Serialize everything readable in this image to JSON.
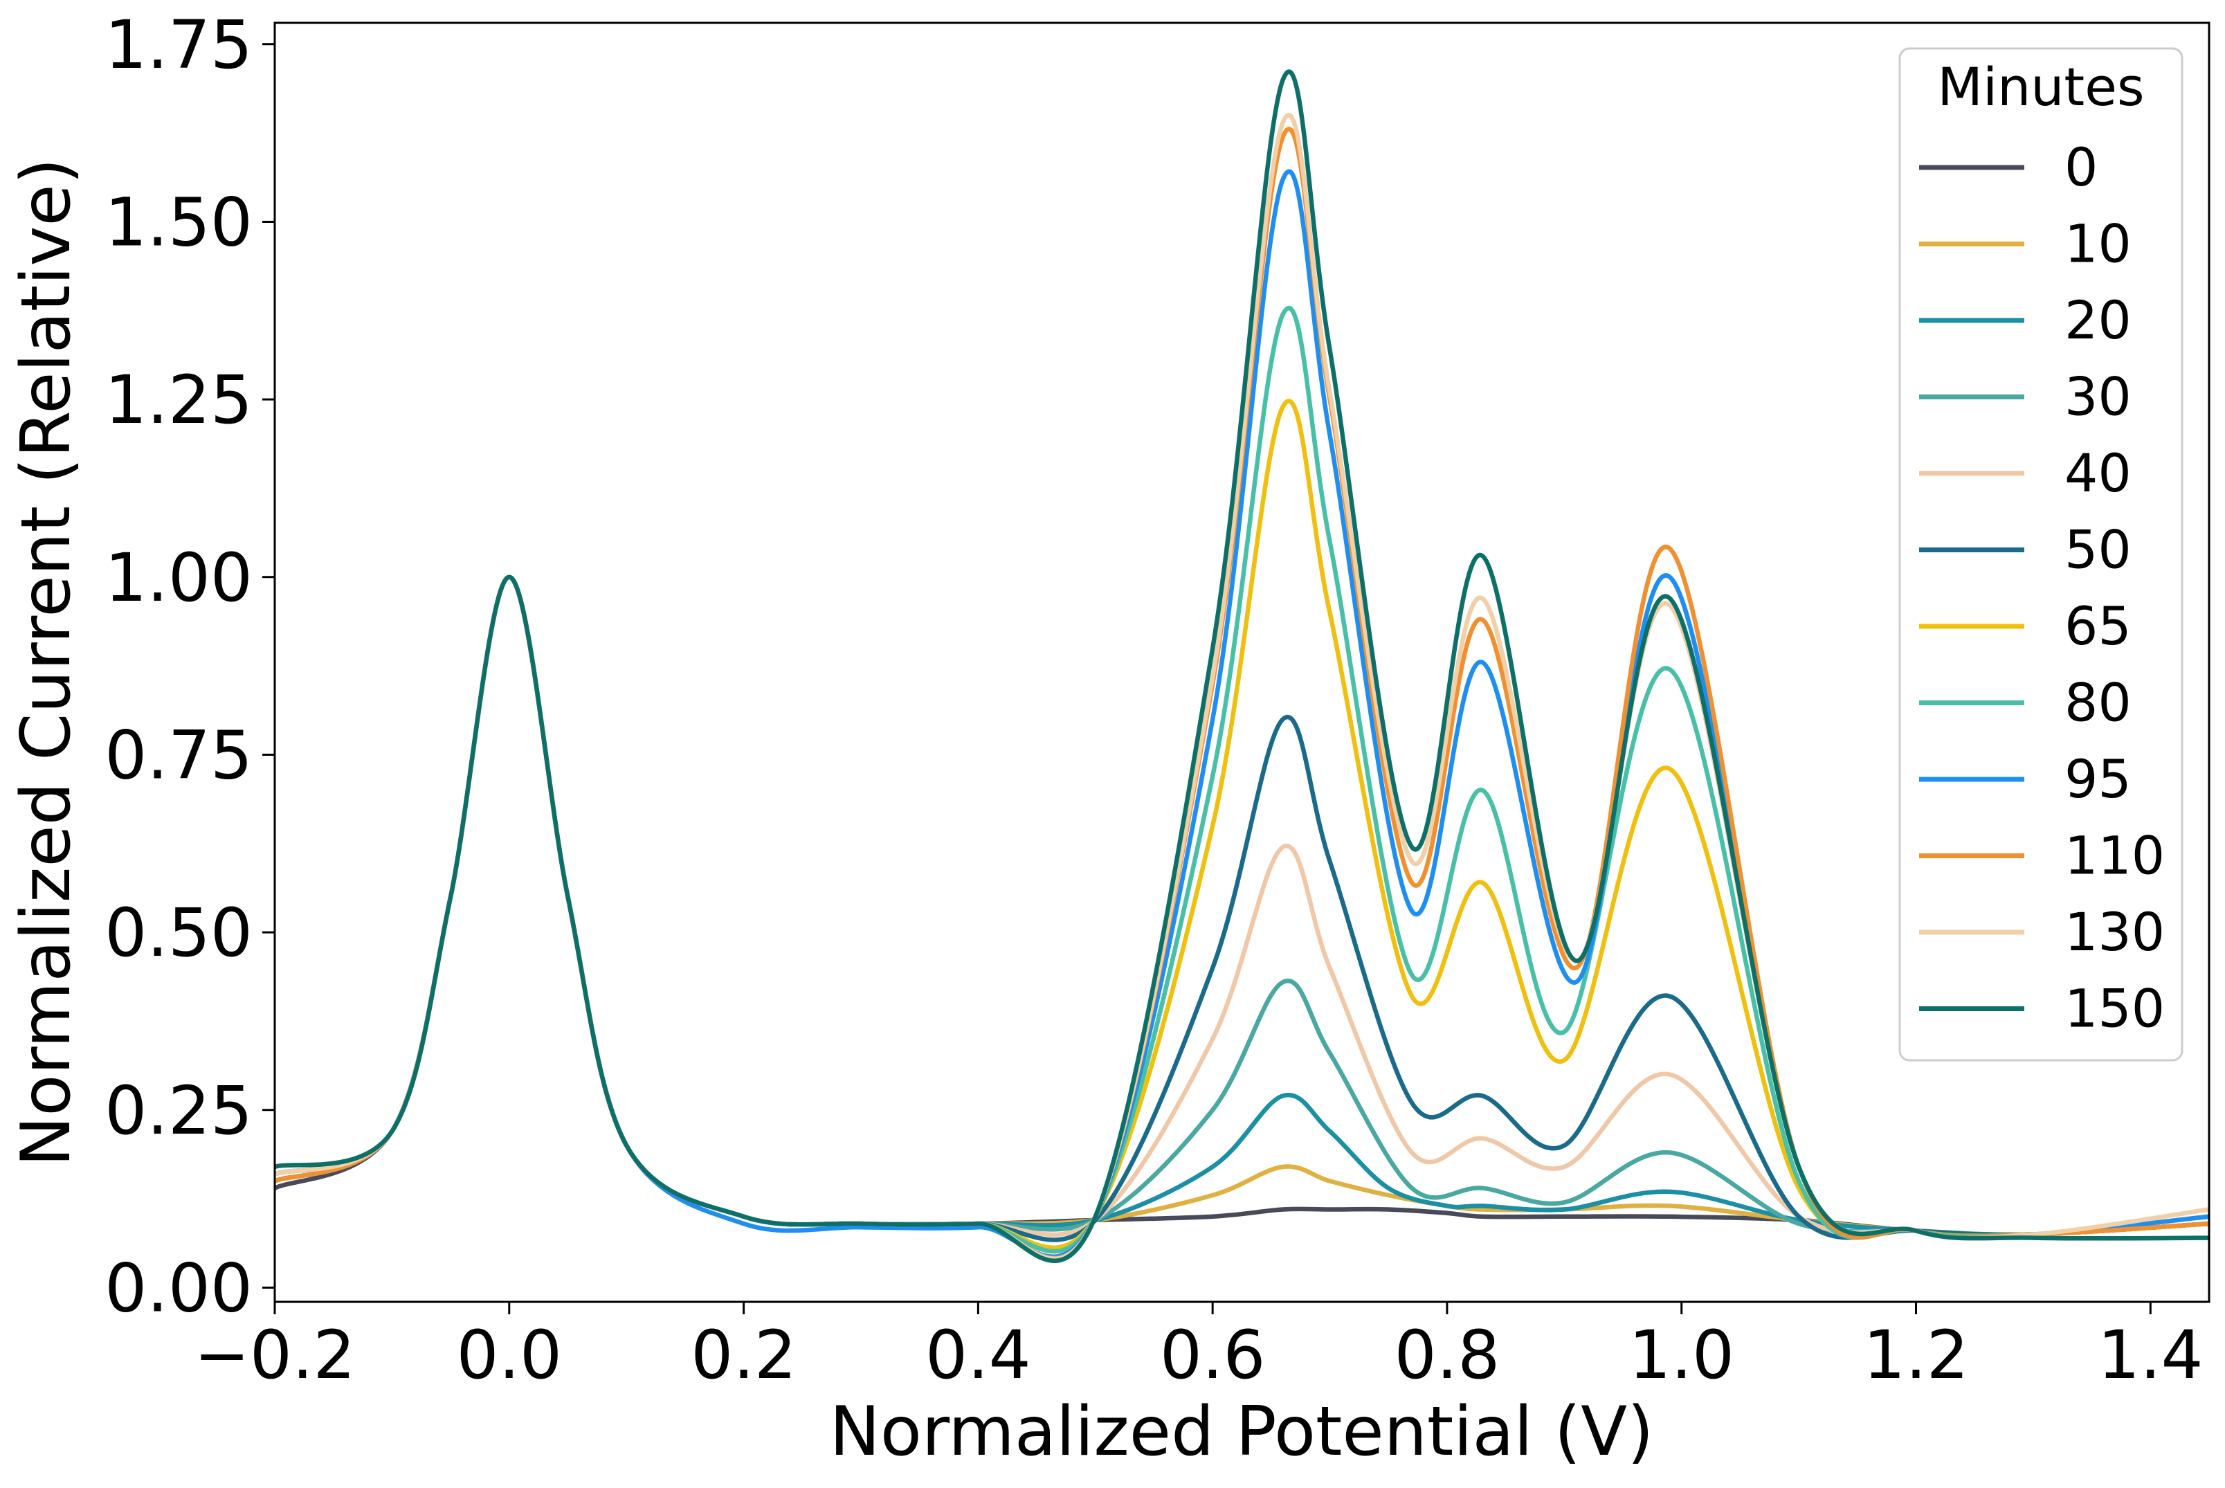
{
  "chart_data": {
    "type": "line",
    "title": "",
    "xlabel": "Normalized Potential (V)",
    "ylabel": "Normalized Current (Relative)",
    "xlim": [
      -0.2,
      1.45
    ],
    "ylim": [
      -0.02,
      1.78
    ],
    "xticks": [
      -0.2,
      0.0,
      0.2,
      0.4,
      0.6,
      0.8,
      1.0,
      1.2,
      1.4
    ],
    "xtick_labels": [
      "−0.2",
      "0.0",
      "0.2",
      "0.4",
      "0.6",
      "0.8",
      "1.0",
      "1.2",
      "1.4"
    ],
    "yticks": [
      0.0,
      0.25,
      0.5,
      0.75,
      1.0,
      1.25,
      1.5,
      1.75
    ],
    "ytick_labels": [
      "0.00",
      "0.25",
      "0.50",
      "0.75",
      "1.00",
      "1.25",
      "1.50",
      "1.75"
    ],
    "grid": false,
    "legend": {
      "title": "Minutes",
      "placement": "top-right"
    },
    "series": [
      {
        "name": "0",
        "color": "#484a5a",
        "x": [
          -0.2,
          -0.1,
          -0.05,
          0.0,
          0.05,
          0.1,
          0.2,
          0.3,
          0.4,
          0.5,
          0.6,
          0.66,
          0.7,
          0.75,
          0.8,
          0.83,
          0.9,
          0.99,
          1.1,
          1.2,
          1.3,
          1.45
        ],
        "y": [
          0.14,
          0.22,
          0.55,
          1.0,
          0.55,
          0.2,
          0.1,
          0.09,
          0.09,
          0.095,
          0.1,
          0.11,
          0.11,
          0.11,
          0.105,
          0.1,
          0.1,
          0.1,
          0.095,
          0.08,
          0.075,
          0.1
        ]
      },
      {
        "name": "10",
        "color": "#e0b040",
        "x": [
          -0.2,
          -0.1,
          -0.05,
          0.0,
          0.05,
          0.1,
          0.2,
          0.3,
          0.4,
          0.5,
          0.6,
          0.66,
          0.7,
          0.75,
          0.8,
          0.83,
          0.9,
          0.99,
          1.1,
          1.2,
          1.3,
          1.45
        ],
        "y": [
          0.15,
          0.22,
          0.55,
          1.0,
          0.55,
          0.2,
          0.1,
          0.09,
          0.09,
          0.095,
          0.13,
          0.17,
          0.15,
          0.13,
          0.115,
          0.11,
          0.11,
          0.115,
          0.095,
          0.08,
          0.075,
          0.09
        ]
      },
      {
        "name": "20",
        "color": "#1a8fa5",
        "x": [
          -0.2,
          -0.1,
          -0.05,
          0.0,
          0.05,
          0.1,
          0.2,
          0.3,
          0.4,
          0.5,
          0.6,
          0.66,
          0.7,
          0.75,
          0.8,
          0.83,
          0.9,
          0.99,
          1.1,
          1.2,
          1.3,
          1.45
        ],
        "y": [
          0.16,
          0.22,
          0.55,
          1.0,
          0.55,
          0.2,
          0.1,
          0.09,
          0.09,
          0.095,
          0.17,
          0.27,
          0.22,
          0.14,
          0.115,
          0.115,
          0.11,
          0.135,
          0.095,
          0.08,
          0.075,
          0.09
        ]
      },
      {
        "name": "30",
        "color": "#4aa8a2",
        "x": [
          -0.2,
          -0.1,
          -0.05,
          0.0,
          0.05,
          0.1,
          0.2,
          0.3,
          0.4,
          0.5,
          0.6,
          0.66,
          0.7,
          0.77,
          0.83,
          0.9,
          0.99,
          1.1,
          1.2,
          1.3,
          1.45
        ],
        "y": [
          0.16,
          0.22,
          0.55,
          1.0,
          0.55,
          0.2,
          0.1,
          0.09,
          0.09,
          0.095,
          0.25,
          0.43,
          0.33,
          0.14,
          0.14,
          0.12,
          0.19,
          0.09,
          0.08,
          0.075,
          0.09
        ]
      },
      {
        "name": "40",
        "color": "#f0c8a8",
        "x": [
          -0.2,
          -0.1,
          -0.05,
          0.0,
          0.05,
          0.1,
          0.2,
          0.3,
          0.4,
          0.5,
          0.6,
          0.66,
          0.7,
          0.77,
          0.83,
          0.9,
          0.99,
          1.1,
          1.2,
          1.3,
          1.45
        ],
        "y": [
          0.16,
          0.22,
          0.55,
          1.0,
          0.55,
          0.2,
          0.1,
          0.09,
          0.09,
          0.095,
          0.35,
          0.62,
          0.45,
          0.19,
          0.21,
          0.17,
          0.3,
          0.1,
          0.08,
          0.075,
          0.1
        ]
      },
      {
        "name": "50",
        "color": "#1a6a8a",
        "x": [
          -0.2,
          -0.1,
          -0.05,
          0.0,
          0.05,
          0.1,
          0.2,
          0.3,
          0.4,
          0.5,
          0.6,
          0.66,
          0.7,
          0.77,
          0.83,
          0.9,
          0.99,
          1.1,
          1.2,
          1.3,
          1.45
        ],
        "y": [
          0.15,
          0.22,
          0.55,
          1.0,
          0.55,
          0.2,
          0.1,
          0.09,
          0.09,
          0.095,
          0.45,
          0.8,
          0.6,
          0.26,
          0.27,
          0.2,
          0.41,
          0.1,
          0.08,
          0.075,
          0.09
        ]
      },
      {
        "name": "65",
        "color": "#f0c010",
        "x": [
          -0.2,
          -0.1,
          -0.05,
          0.0,
          0.05,
          0.1,
          0.2,
          0.3,
          0.4,
          0.5,
          0.6,
          0.66,
          0.7,
          0.77,
          0.83,
          0.9,
          0.99,
          1.1,
          1.2,
          1.3,
          1.45
        ],
        "y": [
          0.16,
          0.22,
          0.55,
          1.0,
          0.55,
          0.2,
          0.1,
          0.09,
          0.09,
          0.1,
          0.65,
          1.24,
          0.95,
          0.41,
          0.57,
          0.32,
          0.73,
          0.14,
          0.08,
          0.075,
          0.09
        ]
      },
      {
        "name": "80",
        "color": "#48c0a8",
        "x": [
          -0.2,
          -0.1,
          -0.05,
          0.0,
          0.05,
          0.1,
          0.2,
          0.3,
          0.4,
          0.5,
          0.6,
          0.66,
          0.7,
          0.77,
          0.83,
          0.9,
          0.99,
          1.1,
          1.2,
          1.3,
          1.45
        ],
        "y": [
          0.16,
          0.22,
          0.55,
          1.0,
          0.55,
          0.2,
          0.1,
          0.09,
          0.09,
          0.1,
          0.72,
          1.37,
          1.05,
          0.44,
          0.7,
          0.36,
          0.87,
          0.15,
          0.08,
          0.075,
          0.09
        ]
      },
      {
        "name": "95",
        "color": "#1e8ef0",
        "x": [
          -0.2,
          -0.1,
          -0.05,
          0.0,
          0.05,
          0.1,
          0.2,
          0.3,
          0.4,
          0.5,
          0.6,
          0.66,
          0.7,
          0.77,
          0.83,
          0.91,
          0.99,
          1.1,
          1.2,
          1.3,
          1.45
        ],
        "y": [
          0.16,
          0.22,
          0.55,
          1.0,
          0.55,
          0.2,
          0.09,
          0.085,
          0.085,
          0.1,
          0.8,
          1.56,
          1.2,
          0.53,
          0.88,
          0.43,
          1.0,
          0.17,
          0.08,
          0.075,
          0.1
        ]
      },
      {
        "name": "110",
        "color": "#f09030",
        "x": [
          -0.2,
          -0.1,
          -0.05,
          0.0,
          0.05,
          0.1,
          0.2,
          0.3,
          0.4,
          0.5,
          0.6,
          0.66,
          0.7,
          0.77,
          0.83,
          0.91,
          0.99,
          1.1,
          1.2,
          1.3,
          1.45
        ],
        "y": [
          0.15,
          0.22,
          0.55,
          1.0,
          0.55,
          0.2,
          0.1,
          0.09,
          0.09,
          0.1,
          0.85,
          1.62,
          1.25,
          0.57,
          0.94,
          0.45,
          1.04,
          0.17,
          0.08,
          0.075,
          0.09
        ]
      },
      {
        "name": "130",
        "color": "#f0d0a8",
        "x": [
          -0.2,
          -0.1,
          -0.05,
          0.0,
          0.05,
          0.1,
          0.2,
          0.3,
          0.4,
          0.5,
          0.6,
          0.66,
          0.7,
          0.77,
          0.83,
          0.91,
          0.99,
          1.1,
          1.2,
          1.3,
          1.45
        ],
        "y": [
          0.16,
          0.22,
          0.55,
          1.0,
          0.55,
          0.2,
          0.1,
          0.09,
          0.09,
          0.1,
          0.86,
          1.64,
          1.26,
          0.6,
          0.97,
          0.46,
          0.96,
          0.17,
          0.08,
          0.075,
          0.11
        ]
      },
      {
        "name": "150",
        "color": "#0d7068",
        "x": [
          -0.2,
          -0.1,
          -0.05,
          0.0,
          0.05,
          0.1,
          0.2,
          0.3,
          0.4,
          0.5,
          0.6,
          0.66,
          0.7,
          0.77,
          0.83,
          0.91,
          0.99,
          1.1,
          1.2,
          1.3,
          1.45
        ],
        "y": [
          0.17,
          0.22,
          0.55,
          1.0,
          0.55,
          0.2,
          0.1,
          0.09,
          0.09,
          0.1,
          0.9,
          1.7,
          1.32,
          0.62,
          1.03,
          0.46,
          0.97,
          0.17,
          0.08,
          0.07,
          0.07
        ]
      }
    ]
  }
}
